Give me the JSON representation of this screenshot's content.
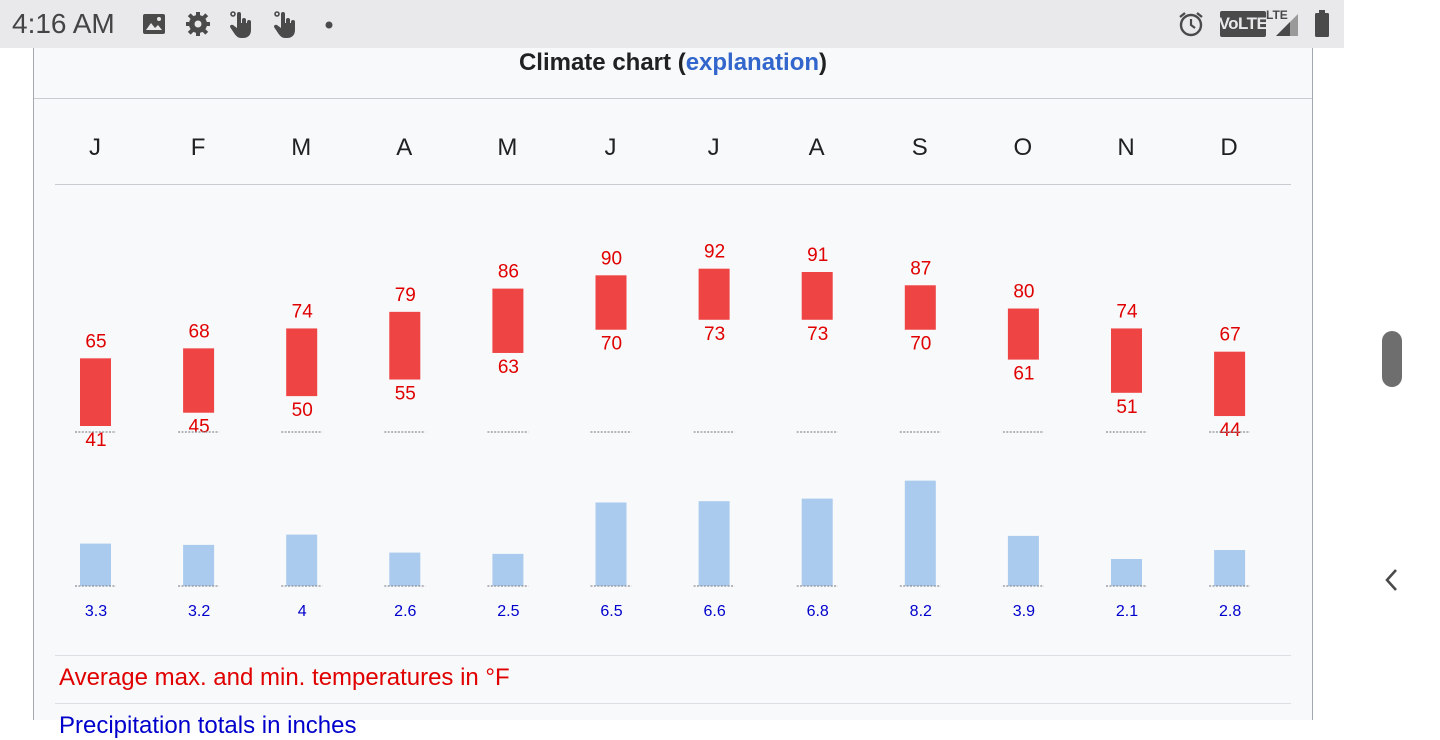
{
  "status_bar": {
    "time": "4:16 AM",
    "left_icons": [
      "image-icon",
      "settings-gear-icon",
      "touch-gesture-icon",
      "touch-gesture-icon",
      "dot-icon"
    ],
    "right_icons": [
      "alarm-icon",
      "volte-icon",
      "lte-signal-icon",
      "battery-icon"
    ],
    "volte_text": "VoLTE",
    "lte_text": "LTE"
  },
  "header": {
    "title": "Climate chart",
    "paren_open": "(",
    "link": "explanation",
    "paren_close": ")"
  },
  "months": [
    "J",
    "F",
    "M",
    "A",
    "M",
    "J",
    "J",
    "A",
    "S",
    "O",
    "N",
    "D"
  ],
  "legend": {
    "temperature": "Average max. and min. temperatures in °F",
    "precipitation": "Precipitation totals in inches"
  },
  "colors": {
    "temp": "#ef4444",
    "temp_text": "#e00000",
    "precip": "#aacbee",
    "precip_text": "#0000cc",
    "link": "#3366cc"
  },
  "chart_data": {
    "type": "bar",
    "categories": [
      "J",
      "F",
      "M",
      "A",
      "M",
      "J",
      "J",
      "A",
      "S",
      "O",
      "N",
      "D"
    ],
    "series": [
      {
        "name": "Average max. and min. temperatures in °F",
        "max": [
          65,
          68,
          74,
          79,
          86,
          90,
          92,
          91,
          87,
          80,
          74,
          67
        ],
        "min": [
          41,
          45,
          50,
          55,
          63,
          70,
          73,
          73,
          70,
          61,
          51,
          44
        ]
      },
      {
        "name": "Precipitation totals in inches",
        "values": [
          3.3,
          3.2,
          4,
          2.6,
          2.5,
          6.5,
          6.6,
          6.8,
          8.2,
          3.9,
          2.1,
          2.8
        ]
      }
    ]
  }
}
